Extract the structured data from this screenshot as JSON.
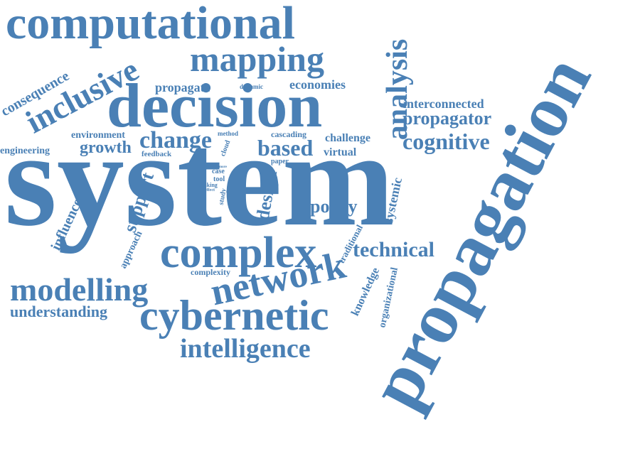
{
  "colors": {
    "word": "#4a80b5",
    "background": "#ffffff"
  },
  "words": {
    "system": "system",
    "propagation": "propagation",
    "decision": "decision",
    "computational": "computational",
    "complex": "complex",
    "cybernetic": "cybernetic",
    "network": "network",
    "mapping": "mapping",
    "modelling": "modelling",
    "inclusive": "inclusive",
    "analysis": "analysis",
    "intelligence": "intelligence",
    "change": "change",
    "based": "based",
    "cognitive": "cognitive",
    "technical": "technical",
    "propagator": "propagator",
    "understanding": "understanding",
    "support": "support",
    "consequence": "consequence",
    "growth": "growth",
    "policy": "policy",
    "design": "design",
    "influence": "influence",
    "interconnected": "interconnected",
    "propagate": "propagate",
    "economies": "economies",
    "environment": "environment",
    "engineering": "engineering",
    "challenge": "challenge",
    "virtual": "virtual",
    "cascading": "cascading",
    "systemic": "systemic",
    "knowledge": "knowledge",
    "organizational": "organizational",
    "traditional": "traditional",
    "approach": "approach",
    "complexity": "complexity",
    "feedback": "feedback",
    "method": "method",
    "dynamic": "dynamic",
    "cloud": "cloud",
    "paper": "paper",
    "case": "case",
    "tool": "tool",
    "making": "making",
    "effect": "effect",
    "study": "study",
    "more": "more"
  }
}
